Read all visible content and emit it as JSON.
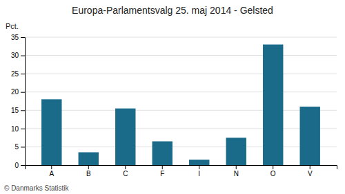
{
  "chart_data": {
    "type": "bar",
    "title": "Europa-Parlamentsvalg 25. maj 2014 - Gelsted",
    "categories": [
      "A",
      "B",
      "C",
      "F",
      "I",
      "N",
      "O",
      "V"
    ],
    "values": [
      18.0,
      3.5,
      15.5,
      6.5,
      1.5,
      7.5,
      33.0,
      16.0
    ],
    "color": "#1a6b8a",
    "ylabel": "Pct.",
    "ylim": [
      0,
      35
    ],
    "yticks": [
      0,
      5,
      10,
      15,
      20,
      25,
      30,
      35
    ],
    "grid": true,
    "footnote": "© Danmarks Statistik"
  }
}
